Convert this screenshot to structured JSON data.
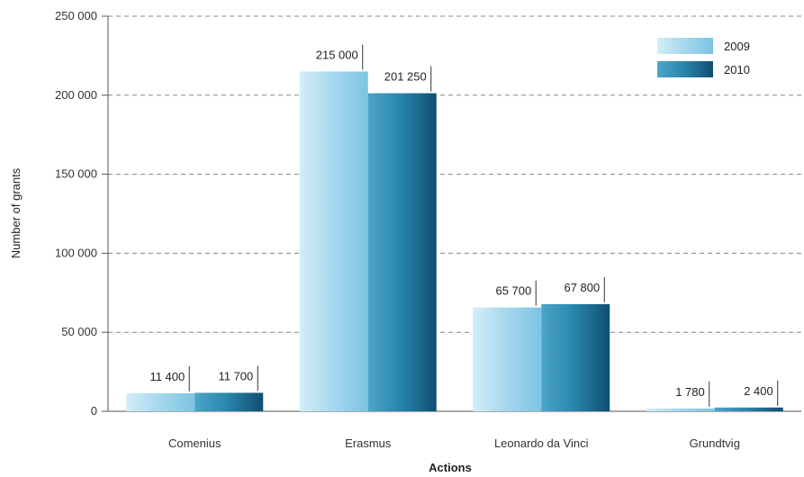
{
  "chart_data": {
    "type": "bar",
    "xlabel": "Actions",
    "ylabel": "Number of grants",
    "categories": [
      "Comenius",
      "Erasmus",
      "Leonardo da Vinci",
      "Grundtvig"
    ],
    "series": [
      {
        "name": "2009",
        "values": [
          11400,
          215000,
          65700,
          1780
        ],
        "labels": [
          "11 400",
          "215 000",
          "65 700",
          "1 780"
        ],
        "color": "#a9d9ee"
      },
      {
        "name": "2010",
        "values": [
          11700,
          201250,
          67800,
          2400
        ],
        "labels": [
          "11 700",
          "201 250",
          "67 800",
          "2 400"
        ],
        "color": "#1f7fa6"
      }
    ],
    "ylim": [
      0,
      250000
    ],
    "yticks": [
      0,
      50000,
      100000,
      150000,
      200000,
      250000
    ],
    "ytick_labels": [
      "0",
      "50 000",
      "100 000",
      "150 000",
      "200 000",
      "250 000"
    ],
    "grid": true,
    "legend_position": "top-right"
  }
}
